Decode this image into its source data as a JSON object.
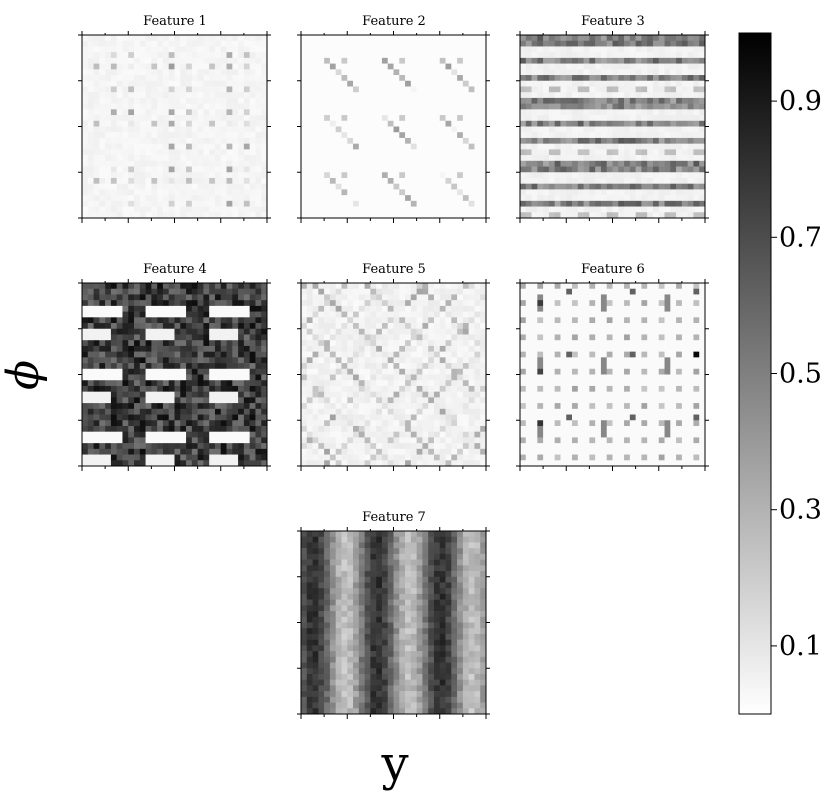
{
  "chart_data": {
    "type": "heatmap",
    "colormap": "gray_r",
    "ylabel": "ϕ",
    "xlabel": "y",
    "colorbar": {
      "range": [
        0,
        1
      ],
      "ticks": [
        "0.1",
        "0.3",
        "0.5",
        "0.7",
        "0.9"
      ],
      "tick_values": [
        0.1,
        0.3,
        0.5,
        0.7,
        0.9
      ],
      "colors": [
        "#ffffff",
        "#000000"
      ]
    },
    "panels": [
      {
        "title": "Feature 1",
        "pattern": "sparse-blocks",
        "mean_value": 0.08
      },
      {
        "title": "Feature 2",
        "pattern": "sparse-diagonal",
        "mean_value": 0.04
      },
      {
        "title": "Feature 3",
        "pattern": "band-rows",
        "mean_value": 0.2
      },
      {
        "title": "Feature 4",
        "pattern": "dense-blocks",
        "mean_value": 0.65
      },
      {
        "title": "Feature 5",
        "pattern": "diagonal-scatter",
        "mean_value": 0.15
      },
      {
        "title": "Feature 6",
        "pattern": "dot-lattice",
        "mean_value": 0.25
      },
      {
        "title": "Feature 7",
        "pattern": "vertical-stripes",
        "mean_value": 0.6
      }
    ]
  }
}
